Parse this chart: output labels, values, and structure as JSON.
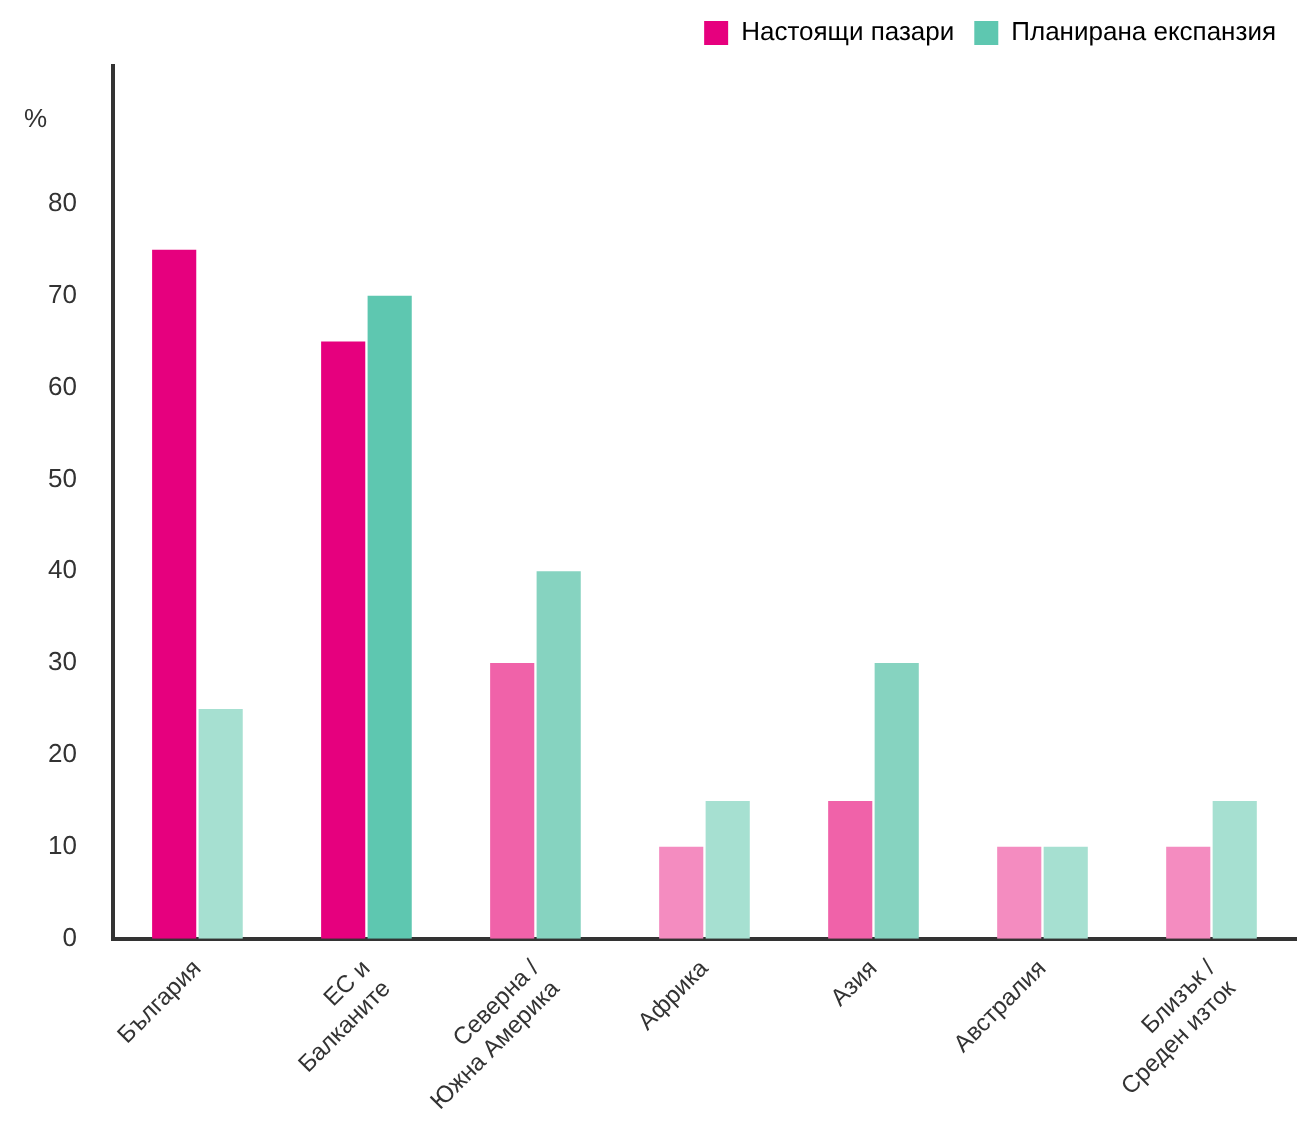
{
  "chart_data": {
    "type": "bar",
    "ylabel": "%",
    "categories": [
      "България",
      "ЕС и\nБалканите",
      "Северна /\nЮжна Америка",
      "Африка",
      "Азия",
      "Австралия",
      "Близък /\nСреден изток"
    ],
    "series": [
      {
        "name": "Настоящи пазари",
        "color": "#e6007e",
        "colors": [
          "#e6007e",
          "#e6007e",
          "#f062a9",
          "#f48cc0",
          "#f062a9",
          "#f48cc0",
          "#f48cc0"
        ],
        "values": [
          75,
          65,
          30,
          10,
          15,
          10,
          10
        ]
      },
      {
        "name": "Планирана експанзия",
        "color": "#5ec7b0",
        "colors": [
          "#a6e0d1",
          "#5ec7b0",
          "#86d3c0",
          "#a6e0d1",
          "#86d3c0",
          "#a6e0d1",
          "#a6e0d1"
        ],
        "values": [
          25,
          70,
          40,
          15,
          30,
          10,
          15
        ]
      }
    ],
    "ylim": [
      0,
      95
    ],
    "yticks": [
      0,
      10,
      20,
      30,
      40,
      50,
      60,
      70,
      80
    ],
    "grid": false,
    "legend": "top right"
  }
}
